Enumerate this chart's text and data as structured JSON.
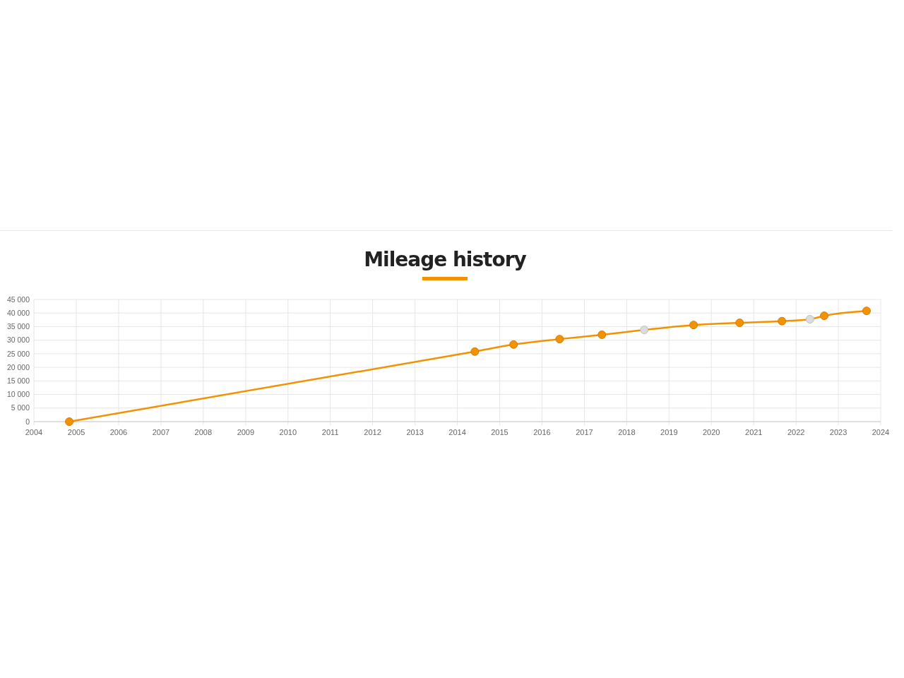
{
  "chart_data": {
    "type": "line",
    "title": "Mileage history",
    "x": [
      "2004-11",
      "2014-06",
      "2015-05",
      "2016-06",
      "2017-06",
      "2018-06",
      "2019-08",
      "2020-09",
      "2021-09",
      "2022-05",
      "2022-09",
      "2023-09"
    ],
    "series": [
      {
        "color": "#f39200",
        "colors": [
          "#f39200",
          "#f39200",
          "#f39200",
          "#f39200",
          "#f39200",
          "#dcdcdc",
          "#f39200",
          "#f39200",
          "#f39200",
          "#dcdcdc",
          "#f39200",
          "#f39200"
        ],
        "values": [
          0,
          25800,
          28400,
          30400,
          32000,
          33800,
          35600,
          36400,
          37000,
          37700,
          39000,
          40800
        ]
      }
    ],
    "xlim": [
      "2004",
      "2024"
    ],
    "xticks": [
      "2004",
      "2005",
      "2006",
      "2007",
      "2008",
      "2009",
      "2010",
      "2011",
      "2012",
      "2013",
      "2014",
      "2015",
      "2016",
      "2017",
      "2018",
      "2019",
      "2020",
      "2021",
      "2022",
      "2023",
      "2024"
    ],
    "ylim": [
      0,
      45000
    ],
    "yticks": [
      0,
      {
        "value": 5000,
        "label": "5 000"
      },
      {
        "value": 10000,
        "label": "10 000"
      },
      {
        "value": 15000,
        "label": "15 000"
      },
      {
        "value": 20000,
        "label": "20 000"
      },
      {
        "value": 25000,
        "label": "25 000"
      },
      {
        "value": 30000,
        "label": "30 000"
      },
      {
        "value": 35000,
        "label": "35 000"
      },
      {
        "value": 40000,
        "label": "40 000"
      },
      {
        "value": 45000,
        "label": "45 000"
      }
    ],
    "grid": true,
    "marker": "circle",
    "line_style": "solid"
  }
}
